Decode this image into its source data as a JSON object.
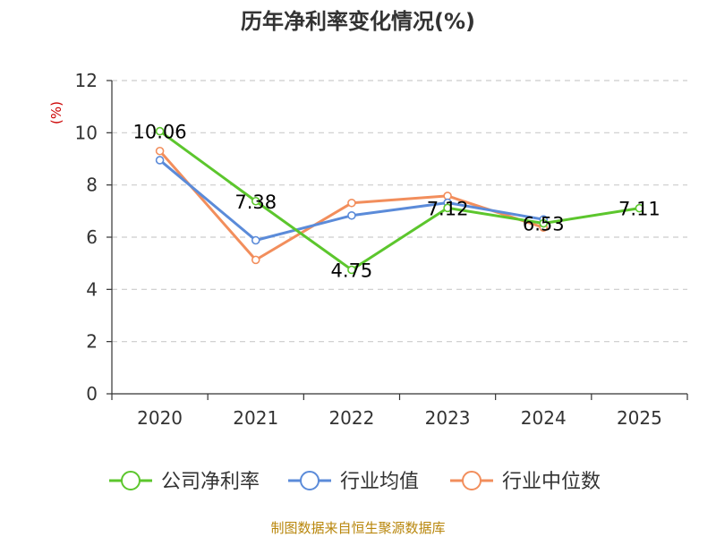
{
  "chart_data": {
    "type": "line",
    "title": "历年净利率变化情况(%)",
    "ylabel": "(%)",
    "xlabel": "",
    "categories": [
      "2020",
      "2021",
      "2022",
      "2023",
      "2024",
      "2025"
    ],
    "ylim": [
      0,
      12
    ],
    "yticks": [
      0,
      2,
      4,
      6,
      8,
      10,
      12
    ],
    "grid": true,
    "legend_position": "bottom",
    "series": [
      {
        "name": "公司净利率",
        "color": "#5cc62d",
        "values": [
          10.06,
          7.38,
          4.75,
          7.12,
          6.53,
          7.11
        ],
        "labels": [
          "10.06",
          "7.38",
          "4.75",
          "7.12",
          "6.53",
          "7.11"
        ]
      },
      {
        "name": "行业均值",
        "color": "#5b8bd9",
        "values": [
          8.95,
          5.88,
          6.83,
          7.32,
          6.68,
          null
        ]
      },
      {
        "name": "行业中位数",
        "color": "#f28e5c",
        "values": [
          9.3,
          5.13,
          7.31,
          7.58,
          6.37,
          null
        ]
      }
    ]
  },
  "source_note": "制图数据来自恒生聚源数据库"
}
